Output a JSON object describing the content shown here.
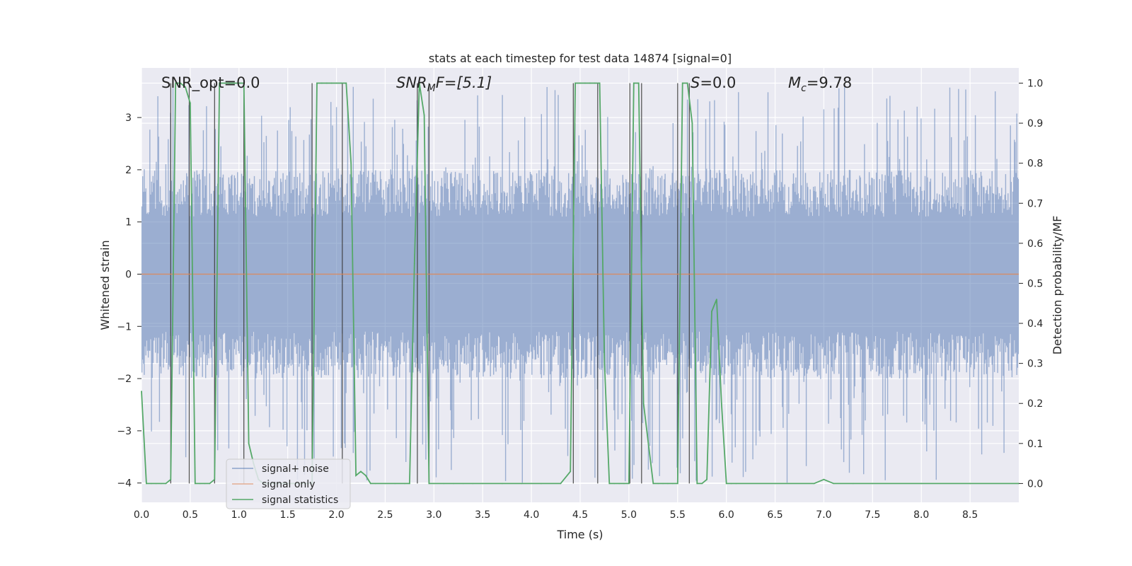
{
  "chart_data": {
    "type": "line",
    "title": "stats at each timestep for test data 14874 [signal=0]",
    "xlabel": "Time (s)",
    "ylabel_left": "Whitened strain",
    "ylabel_right": "Detection probability/MF",
    "xlim": [
      0.0,
      9.0
    ],
    "ylim_left": [
      -4.37,
      3.95
    ],
    "ylim_right": [
      -0.047,
      1.038
    ],
    "x_ticks": [
      "0.0",
      "0.5",
      "1.0",
      "1.5",
      "2.0",
      "2.5",
      "3.0",
      "3.5",
      "4.0",
      "4.5",
      "5.0",
      "5.5",
      "6.0",
      "6.5",
      "7.0",
      "7.5",
      "8.0",
      "8.5"
    ],
    "y_ticks_left": [
      "3",
      "2",
      "1",
      "0",
      "−1",
      "−2",
      "−3",
      "−4"
    ],
    "y_ticks_left_values": [
      3,
      2,
      1,
      0,
      -1,
      -2,
      -3,
      -4
    ],
    "y_ticks_right": [
      "1.0",
      "0.9",
      "0.8",
      "0.7",
      "0.6",
      "0.5",
      "0.4",
      "0.3",
      "0.2",
      "0.1",
      "0.0"
    ],
    "y_ticks_right_values": [
      1.0,
      0.9,
      0.8,
      0.7,
      0.6,
      0.5,
      0.4,
      0.3,
      0.2,
      0.1,
      0.0
    ],
    "grid": true,
    "annotations": {
      "snr_opt": "SNR_opt=0.0",
      "snr_mf_main": "SNR",
      "snr_mf_sub": "M",
      "snr_mf_rest": "F=[5.1]",
      "s_main": "S",
      "s_rest": "=0.0",
      "mc_main": "M",
      "mc_sub": "c",
      "mc_rest": "=9.78"
    },
    "legend": {
      "placement": "lower-left",
      "entries": [
        "signal+ noise",
        "signal only",
        "signal statistics"
      ]
    },
    "series": [
      {
        "name": "signal+ noise",
        "axis": "left",
        "color": "#4c72b0",
        "style": "dense noise band",
        "typical_range": [
          -2.0,
          2.0
        ],
        "extreme_range": [
          -4.0,
          3.6
        ]
      },
      {
        "name": "signal only",
        "axis": "left",
        "color": "#dd8452",
        "x": [
          0.0,
          9.0
        ],
        "y": [
          0.0,
          0.0
        ]
      },
      {
        "name": "signal statistics",
        "axis": "right",
        "color": "#55a868",
        "x": [
          0.0,
          0.05,
          0.1,
          0.15,
          0.2,
          0.25,
          0.3,
          0.35,
          0.4,
          0.45,
          0.5,
          0.55,
          0.6,
          0.65,
          0.7,
          0.75,
          0.8,
          0.85,
          0.9,
          0.95,
          1.0,
          1.05,
          1.1,
          1.15,
          1.2,
          1.25,
          1.3,
          1.5,
          1.7,
          1.75,
          1.8,
          1.85,
          1.9,
          1.95,
          2.0,
          2.05,
          2.1,
          2.15,
          2.2,
          2.25,
          2.3,
          2.35,
          2.4,
          2.5,
          2.6,
          2.7,
          2.75,
          2.8,
          2.85,
          2.9,
          2.95,
          3.0,
          3.1,
          3.2,
          3.3,
          3.4,
          3.5,
          3.7,
          3.9,
          4.1,
          4.3,
          4.4,
          4.45,
          4.5,
          4.55,
          4.6,
          4.65,
          4.7,
          4.75,
          4.8,
          4.85,
          4.9,
          4.95,
          5.0,
          5.05,
          5.1,
          5.15,
          5.2,
          5.25,
          5.3,
          5.35,
          5.4,
          5.45,
          5.5,
          5.55,
          5.6,
          5.65,
          5.7,
          5.75,
          5.8,
          5.85,
          5.9,
          5.95,
          6.0,
          6.05,
          6.1,
          6.5,
          6.9,
          7.0,
          7.1,
          7.3,
          7.5,
          8.0,
          8.5,
          9.0
        ],
        "y": [
          0.23,
          0.0,
          0.0,
          0.0,
          0.0,
          0.0,
          0.01,
          1.0,
          1.0,
          0.99,
          0.95,
          0.0,
          0.0,
          0.0,
          0.0,
          0.01,
          1.0,
          1.0,
          1.0,
          1.0,
          1.0,
          1.0,
          0.1,
          0.05,
          0.01,
          0.0,
          0.0,
          0.0,
          0.0,
          0.0,
          1.0,
          1.0,
          1.0,
          1.0,
          1.0,
          1.0,
          1.0,
          0.8,
          0.02,
          0.03,
          0.02,
          0.0,
          0.0,
          0.0,
          0.0,
          0.0,
          0.0,
          0.55,
          1.0,
          0.92,
          0.0,
          0.0,
          0.0,
          0.0,
          0.0,
          0.0,
          0.0,
          0.0,
          0.0,
          0.0,
          0.0,
          0.03,
          1.0,
          1.0,
          1.0,
          1.0,
          1.0,
          1.0,
          0.3,
          0.0,
          0.0,
          0.0,
          0.0,
          0.0,
          1.0,
          1.0,
          0.2,
          0.1,
          0.0,
          0.0,
          0.0,
          0.0,
          0.0,
          0.0,
          1.0,
          1.0,
          0.9,
          0.0,
          0.0,
          0.01,
          0.43,
          0.46,
          0.2,
          0.0,
          0.0,
          0.0,
          0.0,
          0.0,
          0.01,
          0.0,
          0.0,
          0.0,
          0.0,
          0.0,
          0.0
        ]
      }
    ],
    "vertical_markers_x": [
      0.3,
      0.49,
      0.75,
      1.05,
      1.75,
      2.06,
      2.83,
      2.95,
      4.43,
      4.68,
      5.01,
      5.13,
      5.5,
      5.62
    ]
  }
}
